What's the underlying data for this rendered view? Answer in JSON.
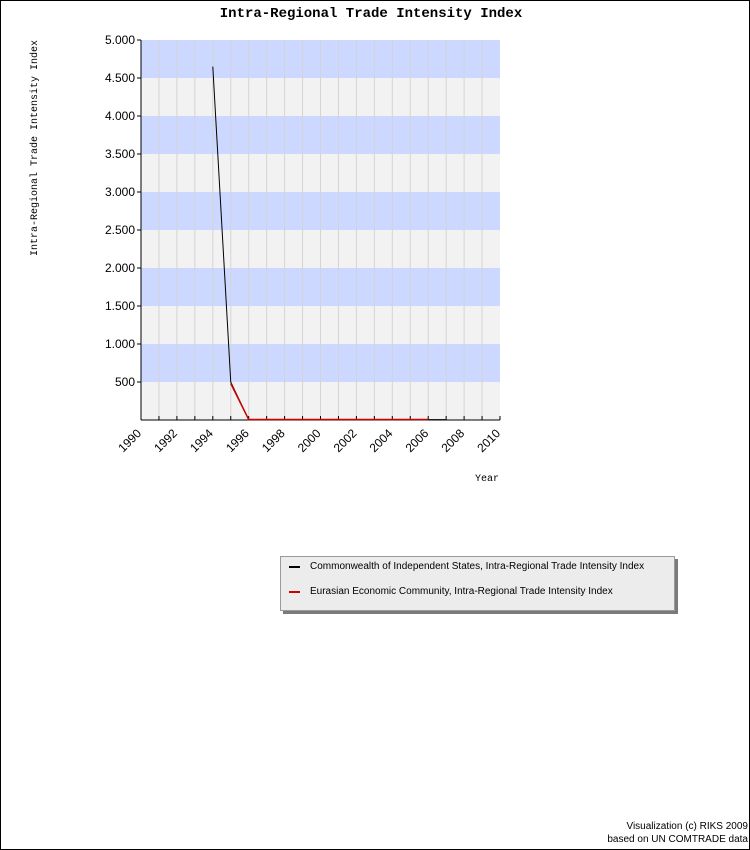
{
  "chart_data": {
    "type": "line",
    "title": "Intra-Regional Trade Intensity Index",
    "ylabel": "Intra-Regional Trade Intensity Index",
    "xlabel": "Year",
    "xlim": [
      1990,
      2010
    ],
    "ylim": [
      0,
      5000
    ],
    "x_ticks": [
      1990,
      1992,
      1994,
      1996,
      1998,
      2000,
      2002,
      2004,
      2006,
      2008,
      2010
    ],
    "y_ticks": [
      500,
      1000,
      1500,
      2000,
      2500,
      3000,
      3500,
      4000,
      4500,
      5000
    ],
    "y_tick_labels": [
      "500",
      "1.000",
      "1.500",
      "2.000",
      "2.500",
      "3.000",
      "3.500",
      "4.000",
      "4.500",
      "5.000"
    ],
    "grid": true,
    "legend_position": "below-right",
    "series": [
      {
        "name": "Commonwealth of Independent States, Intra-Regional Trade Intensity Index",
        "color": "#000000",
        "x": [
          1994,
          1995,
          1996,
          1997,
          1998,
          1999,
          2000,
          2001,
          2002,
          2003,
          2004,
          2005,
          2006,
          2007
        ],
        "values": [
          4650,
          500,
          5,
          5,
          5,
          5,
          5,
          5,
          5,
          5,
          5,
          5,
          5,
          5
        ]
      },
      {
        "name": "Eurasian Economic Community, Intra-Regional Trade Intensity Index",
        "color": "#cc0000",
        "x": [
          1995,
          1996,
          1997,
          1998,
          1999,
          2000,
          2001,
          2002,
          2003,
          2004,
          2005,
          2006
        ],
        "values": [
          480,
          6,
          6,
          6,
          6,
          6,
          6,
          6,
          6,
          6,
          6,
          6
        ]
      }
    ],
    "band_colors": [
      "#ccd8ff",
      "#f2f2f2"
    ]
  },
  "credits": {
    "line1": "Visualization (c) RIKS 2009",
    "line2": "based on UN COMTRADE data"
  }
}
